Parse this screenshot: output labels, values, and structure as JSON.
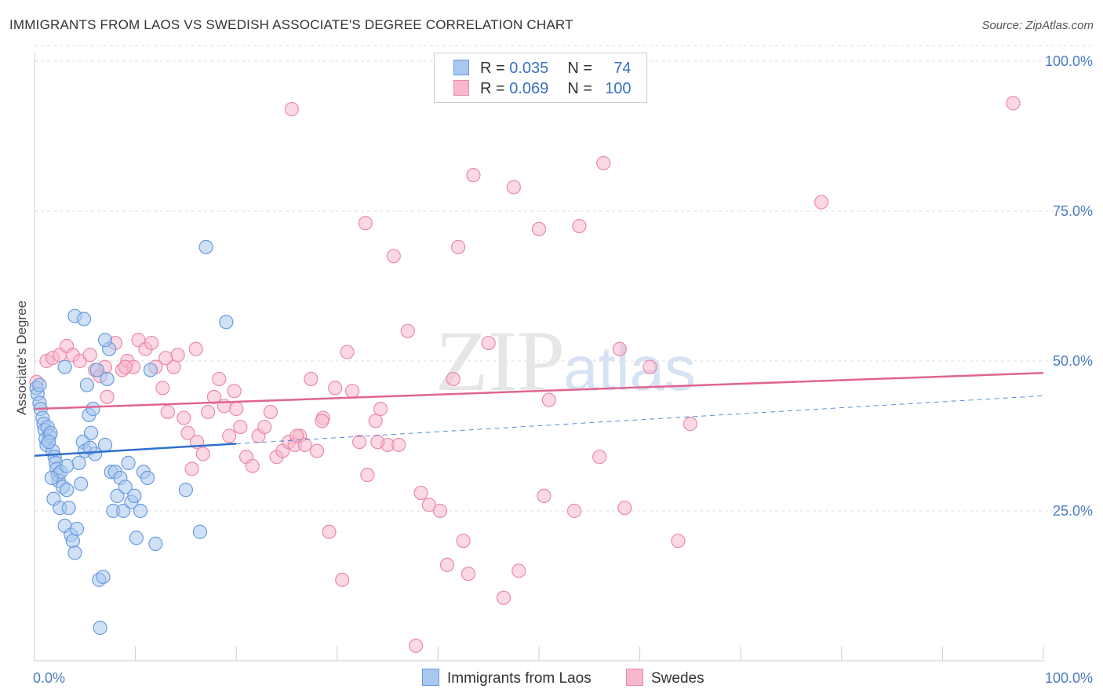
{
  "title": "IMMIGRANTS FROM LAOS VS SWEDISH ASSOCIATE'S DEGREE CORRELATION CHART",
  "source": "Source: ZipAtlas.com",
  "watermark": {
    "zip": "ZIP",
    "atlas": "atlas"
  },
  "legend": {
    "rows": [
      {
        "r_label": "R = ",
        "r_value": "0.035",
        "n_label": "N = ",
        "n_value": "74"
      },
      {
        "r_label": "R = ",
        "r_value": "0.069",
        "n_label": "N = ",
        "n_value": "100"
      }
    ]
  },
  "bottom_legend": {
    "series1": "Immigrants from Laos",
    "series2": "Swedes"
  },
  "colors": {
    "blue_fill": "#a9c8ef",
    "blue_stroke": "#6a9be0",
    "blue_line": "#2f6fce",
    "pink_fill": "#f7b8cc",
    "pink_stroke": "#ea8aab",
    "pink_line": "#e06592",
    "grid": "#dddddd",
    "tick_text": "#4a7cc4"
  },
  "chart_data": {
    "type": "scatter",
    "title": "IMMIGRANTS FROM LAOS VS SWEDISH ASSOCIATE'S DEGREE CORRELATION CHART",
    "xlabel": "",
    "ylabel": "Associate's Degree",
    "xlim": [
      0,
      100
    ],
    "ylim": [
      0,
      100
    ],
    "x_tick_labels": [
      "0.0%",
      "100.0%"
    ],
    "y_tick_labels": [
      "100.0%",
      "75.0%",
      "50.0%",
      "25.0%"
    ],
    "y_ticks": [
      100,
      75,
      50,
      25
    ],
    "grid": true,
    "legend_position": "top-center",
    "series": [
      {
        "name": "Immigrants from Laos",
        "color": "#a9c8ef",
        "trend": {
          "x": [
            0,
            20
          ],
          "y": [
            34.2,
            36.2
          ],
          "dashed_extension_to": [
            100,
            44.2
          ]
        },
        "points": [
          [
            0.2,
            45.5
          ],
          [
            0.3,
            44.5
          ],
          [
            0.5,
            43
          ],
          [
            0.6,
            42
          ],
          [
            0.8,
            40.5
          ],
          [
            0.9,
            39.5
          ],
          [
            1.0,
            38.5
          ],
          [
            1.1,
            37
          ],
          [
            1.2,
            36
          ],
          [
            1.3,
            39
          ],
          [
            1.5,
            37.5
          ],
          [
            1.6,
            38
          ],
          [
            1.8,
            35
          ],
          [
            2.0,
            34
          ],
          [
            2.1,
            33
          ],
          [
            2.2,
            32
          ],
          [
            2.3,
            31
          ],
          [
            2.4,
            30
          ],
          [
            2.6,
            31.5
          ],
          [
            2.8,
            29
          ],
          [
            1.7,
            30.5
          ],
          [
            1.9,
            27
          ],
          [
            2.5,
            25.5
          ],
          [
            3.0,
            22.5
          ],
          [
            3.2,
            28.5
          ],
          [
            3.4,
            25.5
          ],
          [
            3.6,
            21
          ],
          [
            3.8,
            20
          ],
          [
            4.0,
            18
          ],
          [
            4.2,
            22
          ],
          [
            4.4,
            33
          ],
          [
            4.6,
            29.5
          ],
          [
            4.8,
            36.5
          ],
          [
            5.0,
            35
          ],
          [
            5.2,
            46
          ],
          [
            5.4,
            41
          ],
          [
            5.6,
            38
          ],
          [
            5.8,
            42
          ],
          [
            6.0,
            34.5
          ],
          [
            6.2,
            48.5
          ],
          [
            6.4,
            13.5
          ],
          [
            6.5,
            5.5
          ],
          [
            6.8,
            14
          ],
          [
            7.0,
            36
          ],
          [
            7.2,
            47
          ],
          [
            7.4,
            52
          ],
          [
            7.6,
            31.5
          ],
          [
            7.8,
            25
          ],
          [
            8.0,
            31.5
          ],
          [
            8.2,
            27.5
          ],
          [
            8.5,
            30.5
          ],
          [
            8.8,
            25
          ],
          [
            9.0,
            29
          ],
          [
            9.3,
            33
          ],
          [
            9.6,
            26.5
          ],
          [
            9.9,
            27.5
          ],
          [
            10.1,
            20.5
          ],
          [
            10.5,
            25
          ],
          [
            10.8,
            31.5
          ],
          [
            11.2,
            30.5
          ],
          [
            11.5,
            48.5
          ],
          [
            12.0,
            19.5
          ],
          [
            15.0,
            28.5
          ],
          [
            16.4,
            21.5
          ],
          [
            17.0,
            69
          ],
          [
            19.0,
            56.5
          ],
          [
            4.0,
            57.5
          ],
          [
            4.9,
            57
          ],
          [
            7.0,
            53.5
          ],
          [
            3.0,
            49
          ],
          [
            0.5,
            46
          ],
          [
            1.4,
            36.5
          ],
          [
            3.2,
            32.5
          ],
          [
            5.5,
            35.5
          ]
        ]
      },
      {
        "name": "Swedes",
        "color": "#f7b8cc",
        "trend": {
          "x": [
            0,
            100
          ],
          "y": [
            42,
            48
          ]
        },
        "points": [
          [
            0.2,
            46.5
          ],
          [
            1.2,
            50
          ],
          [
            1.8,
            50.5
          ],
          [
            2.5,
            51
          ],
          [
            3.2,
            52.5
          ],
          [
            3.8,
            51
          ],
          [
            4.5,
            50
          ],
          [
            5.5,
            51
          ],
          [
            6.0,
            48.5
          ],
          [
            6.5,
            47.5
          ],
          [
            7.2,
            44
          ],
          [
            8.0,
            53
          ],
          [
            8.7,
            48.5
          ],
          [
            9.2,
            50
          ],
          [
            9.8,
            49
          ],
          [
            10.3,
            53.5
          ],
          [
            11.0,
            52
          ],
          [
            11.6,
            53
          ],
          [
            12.0,
            49
          ],
          [
            12.7,
            45.5
          ],
          [
            13.2,
            41.5
          ],
          [
            13.8,
            49
          ],
          [
            14.2,
            51
          ],
          [
            14.8,
            40.5
          ],
          [
            15.2,
            38
          ],
          [
            15.6,
            32
          ],
          [
            16.1,
            36.5
          ],
          [
            16.7,
            34.5
          ],
          [
            17.2,
            41.5
          ],
          [
            17.8,
            44
          ],
          [
            18.3,
            47
          ],
          [
            18.8,
            42.5
          ],
          [
            19.3,
            37.5
          ],
          [
            19.8,
            45
          ],
          [
            20.4,
            39
          ],
          [
            21.0,
            34
          ],
          [
            21.6,
            32.5
          ],
          [
            22.2,
            37.5
          ],
          [
            22.8,
            39
          ],
          [
            23.4,
            41.5
          ],
          [
            24.0,
            34
          ],
          [
            24.6,
            35
          ],
          [
            25.2,
            36.5
          ],
          [
            25.8,
            36
          ],
          [
            26.3,
            37.5
          ],
          [
            26.8,
            36
          ],
          [
            27.4,
            47
          ],
          [
            28.0,
            35
          ],
          [
            28.6,
            40.5
          ],
          [
            29.2,
            21.5
          ],
          [
            29.8,
            45.5
          ],
          [
            30.5,
            13.5
          ],
          [
            31.0,
            51.5
          ],
          [
            31.5,
            45
          ],
          [
            32.2,
            36.5
          ],
          [
            32.8,
            73
          ],
          [
            33.0,
            31
          ],
          [
            33.8,
            40
          ],
          [
            34.3,
            42
          ],
          [
            35.0,
            36
          ],
          [
            35.6,
            67.5
          ],
          [
            36.1,
            36
          ],
          [
            37.0,
            55
          ],
          [
            37.8,
            2.5
          ],
          [
            38.3,
            28
          ],
          [
            39.1,
            26
          ],
          [
            40.2,
            25
          ],
          [
            40.9,
            16
          ],
          [
            41.5,
            47
          ],
          [
            42.0,
            69
          ],
          [
            42.5,
            20
          ],
          [
            43.0,
            14.5
          ],
          [
            43.5,
            81
          ],
          [
            45.0,
            53
          ],
          [
            46.5,
            10.5
          ],
          [
            47.5,
            79
          ],
          [
            48.0,
            15
          ],
          [
            50.0,
            72
          ],
          [
            50.5,
            27.5
          ],
          [
            51.0,
            43.5
          ],
          [
            53.5,
            25
          ],
          [
            54.0,
            72.5
          ],
          [
            56.0,
            34
          ],
          [
            56.4,
            83
          ],
          [
            58.0,
            52
          ],
          [
            58.5,
            25.5
          ],
          [
            61.0,
            49
          ],
          [
            63.8,
            20
          ],
          [
            65.0,
            39.5
          ],
          [
            78.0,
            76.5
          ],
          [
            97.0,
            93
          ],
          [
            25.5,
            92
          ],
          [
            7.0,
            49
          ],
          [
            9.0,
            49
          ],
          [
            20.0,
            42
          ],
          [
            13.0,
            50.5
          ],
          [
            16.0,
            52
          ],
          [
            26.0,
            37.5
          ],
          [
            28.5,
            40
          ],
          [
            34.0,
            36.5
          ]
        ]
      }
    ]
  }
}
